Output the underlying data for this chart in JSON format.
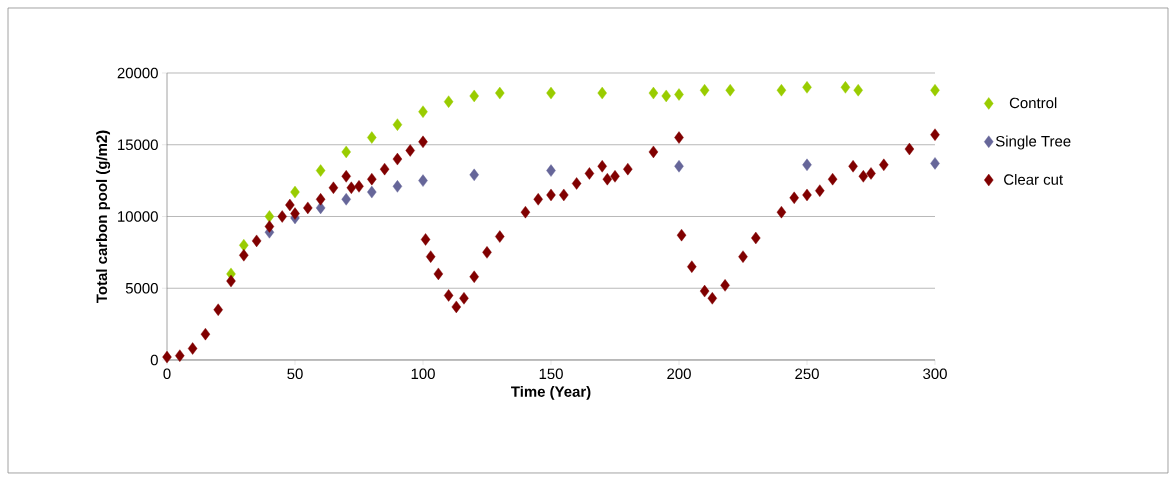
{
  "chart_data": {
    "type": "scatter",
    "xlabel": "Time  (Year)",
    "ylabel": "Total carbon pool (g/m2)",
    "xlim": [
      0,
      300
    ],
    "ylim": [
      0,
      20000
    ],
    "xticks": [
      0,
      50,
      100,
      150,
      200,
      250,
      300
    ],
    "yticks": [
      0,
      5000,
      10000,
      15000,
      20000
    ],
    "grid": "y",
    "legend": "right",
    "marker": "diamond",
    "series": [
      {
        "name": "Control",
        "color": "#99cc00",
        "x": [
          25,
          30,
          40,
          50,
          60,
          70,
          80,
          90,
          100,
          110,
          120,
          130,
          150,
          170,
          190,
          195,
          200,
          210,
          220,
          240,
          250,
          265,
          270,
          300
        ],
        "values": [
          6000,
          8000,
          10000,
          11700,
          13200,
          14500,
          15500,
          16400,
          17300,
          18000,
          18400,
          18600,
          18600,
          18600,
          18600,
          18400,
          18500,
          18800,
          18800,
          18800,
          19000,
          19000,
          18800,
          18800
        ]
      },
      {
        "name": "Single Tree",
        "color": "#666699",
        "x": [
          40,
          50,
          60,
          70,
          80,
          90,
          100,
          120,
          150,
          200,
          250,
          300
        ],
        "values": [
          8900,
          9900,
          10600,
          11200,
          11700,
          12100,
          12500,
          12900,
          13200,
          13500,
          13600,
          13700
        ]
      },
      {
        "name": "Clear cut",
        "color": "#800000",
        "x": [
          0,
          5,
          10,
          15,
          20,
          25,
          30,
          35,
          40,
          45,
          48,
          50,
          55,
          60,
          65,
          70,
          72,
          75,
          80,
          85,
          90,
          95,
          100,
          101,
          103,
          106,
          110,
          113,
          116,
          120,
          125,
          130,
          140,
          145,
          150,
          155,
          160,
          165,
          170,
          172,
          175,
          180,
          190,
          200,
          201,
          205,
          210,
          213,
          218,
          225,
          230,
          240,
          245,
          250,
          255,
          260,
          268,
          272,
          275,
          280,
          290,
          300
        ],
        "values": [
          200,
          300,
          800,
          1800,
          3500,
          5500,
          7300,
          8300,
          9300,
          10000,
          10800,
          10200,
          10600,
          11200,
          12000,
          12800,
          12000,
          12100,
          12600,
          13300,
          14000,
          14600,
          15200,
          8400,
          7200,
          6000,
          4500,
          3700,
          4300,
          5800,
          7500,
          8600,
          10300,
          11200,
          11500,
          11500,
          12300,
          13000,
          13500,
          12600,
          12800,
          13300,
          14500,
          15500,
          8700,
          6500,
          4800,
          4300,
          5200,
          7200,
          8500,
          10300,
          11300,
          11500,
          11800,
          12600,
          13500,
          12800,
          13000,
          13600,
          14700,
          15700
        ]
      }
    ]
  }
}
